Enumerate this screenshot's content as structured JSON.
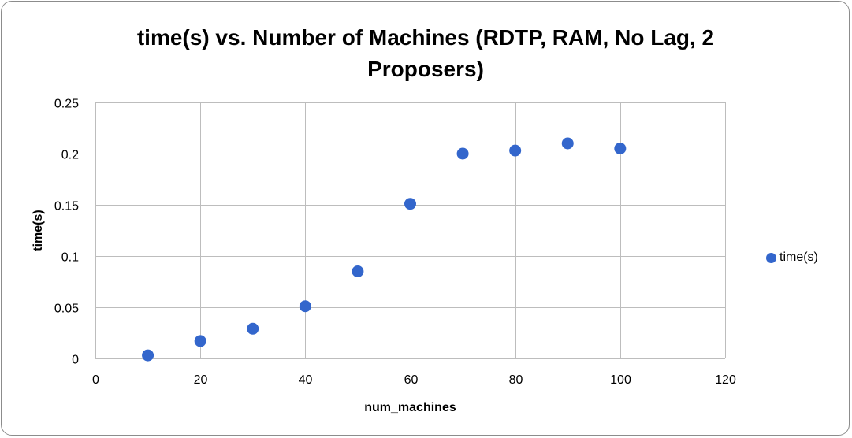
{
  "chart_data": {
    "type": "scatter",
    "title": "time(s) vs. Number of Machines (RDTP, RAM, No Lag, 2 Proposers)",
    "xlabel": "num_machines",
    "ylabel": "time(s)",
    "xlim": [
      0,
      120
    ],
    "ylim": [
      0,
      0.25
    ],
    "xticks": [
      "0",
      "20",
      "40",
      "60",
      "80",
      "100",
      "120"
    ],
    "yticks": [
      "0",
      "0.05",
      "0.1",
      "0.15",
      "0.2",
      "0.25"
    ],
    "grid": true,
    "legend_position": "right",
    "series": [
      {
        "name": "time(s)",
        "color": "#3366cc",
        "x": [
          10,
          20,
          30,
          40,
          50,
          60,
          70,
          80,
          90,
          100
        ],
        "y": [
          0.003,
          0.017,
          0.029,
          0.051,
          0.085,
          0.151,
          0.2,
          0.203,
          0.21,
          0.205
        ]
      }
    ]
  }
}
